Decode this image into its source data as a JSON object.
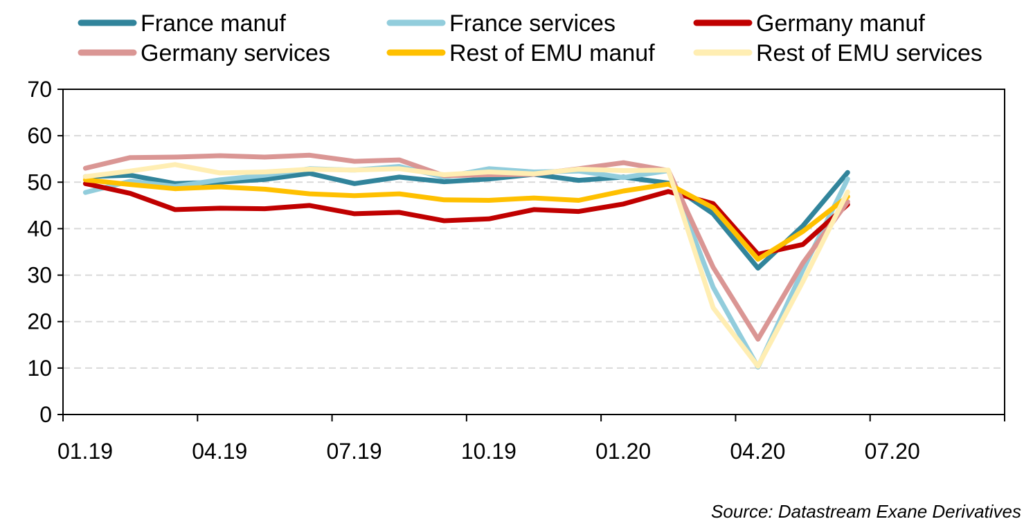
{
  "source_note": "Source: Datastream Exane Derivatives",
  "chart_data": {
    "type": "line",
    "grid": true,
    "grid_style": "dashed",
    "legend_position": "top",
    "ylim": [
      0,
      70
    ],
    "yticks": [
      "0",
      "10",
      "20",
      "30",
      "40",
      "50",
      "60",
      "70"
    ],
    "ytick_values": [
      0,
      10,
      20,
      30,
      40,
      50,
      60,
      70
    ],
    "xlim": [
      0,
      18
    ],
    "xticks": [
      "01.19",
      "04.19",
      "07.19",
      "10.19",
      "01.20",
      "04.20",
      "07.20"
    ],
    "xtick_values": [
      0,
      3,
      6,
      9,
      12,
      15,
      18
    ],
    "x": [
      "01.19",
      "02.19",
      "03.19",
      "04.19",
      "05.19",
      "06.19",
      "07.19",
      "08.19",
      "09.19",
      "10.19",
      "11.19",
      "12.19",
      "01.20",
      "02.20",
      "03.20",
      "04.20",
      "05.20",
      "06.20"
    ],
    "series": [
      {
        "name": "France manuf",
        "color": "#31849b",
        "values": [
          51.2,
          51.5,
          49.7,
          50.0,
          50.6,
          51.9,
          49.7,
          51.1,
          50.1,
          50.7,
          51.7,
          50.4,
          51.1,
          49.8,
          43.2,
          31.5,
          40.6,
          52.1
        ]
      },
      {
        "name": "France services",
        "color": "#92cddc",
        "values": [
          47.8,
          50.2,
          49.1,
          50.5,
          51.5,
          52.9,
          52.6,
          53.4,
          51.1,
          52.9,
          52.2,
          52.4,
          51.0,
          52.5,
          27.4,
          10.2,
          31.1,
          50.7
        ]
      },
      {
        "name": "Germany manuf",
        "color": "#c00000",
        "values": [
          49.7,
          47.6,
          44.1,
          44.4,
          44.3,
          45.0,
          43.2,
          43.5,
          41.7,
          42.1,
          44.1,
          43.7,
          45.3,
          48.0,
          45.4,
          34.5,
          36.6,
          45.2
        ]
      },
      {
        "name": "Germany services",
        "color": "#da9694",
        "values": [
          53.0,
          55.3,
          55.4,
          55.7,
          55.4,
          55.8,
          54.5,
          54.8,
          51.4,
          51.6,
          51.7,
          52.9,
          54.2,
          52.5,
          31.7,
          16.2,
          32.6,
          45.8
        ]
      },
      {
        "name": "Rest of EMU manuf",
        "color": "#ffc000",
        "values": [
          50.5,
          49.5,
          48.6,
          49.0,
          48.5,
          47.5,
          47.1,
          47.5,
          46.2,
          46.1,
          46.6,
          46.1,
          48.1,
          49.6,
          44.5,
          33.4,
          39.4,
          46.9
        ]
      },
      {
        "name": "Rest of EMU services",
        "color": "#ffeeb3",
        "values": [
          51.2,
          52.4,
          53.8,
          52.0,
          52.2,
          52.8,
          52.6,
          52.9,
          51.6,
          52.2,
          51.8,
          52.8,
          52.5,
          52.6,
          23.0,
          10.4,
          28.6,
          47.9
        ]
      }
    ]
  }
}
